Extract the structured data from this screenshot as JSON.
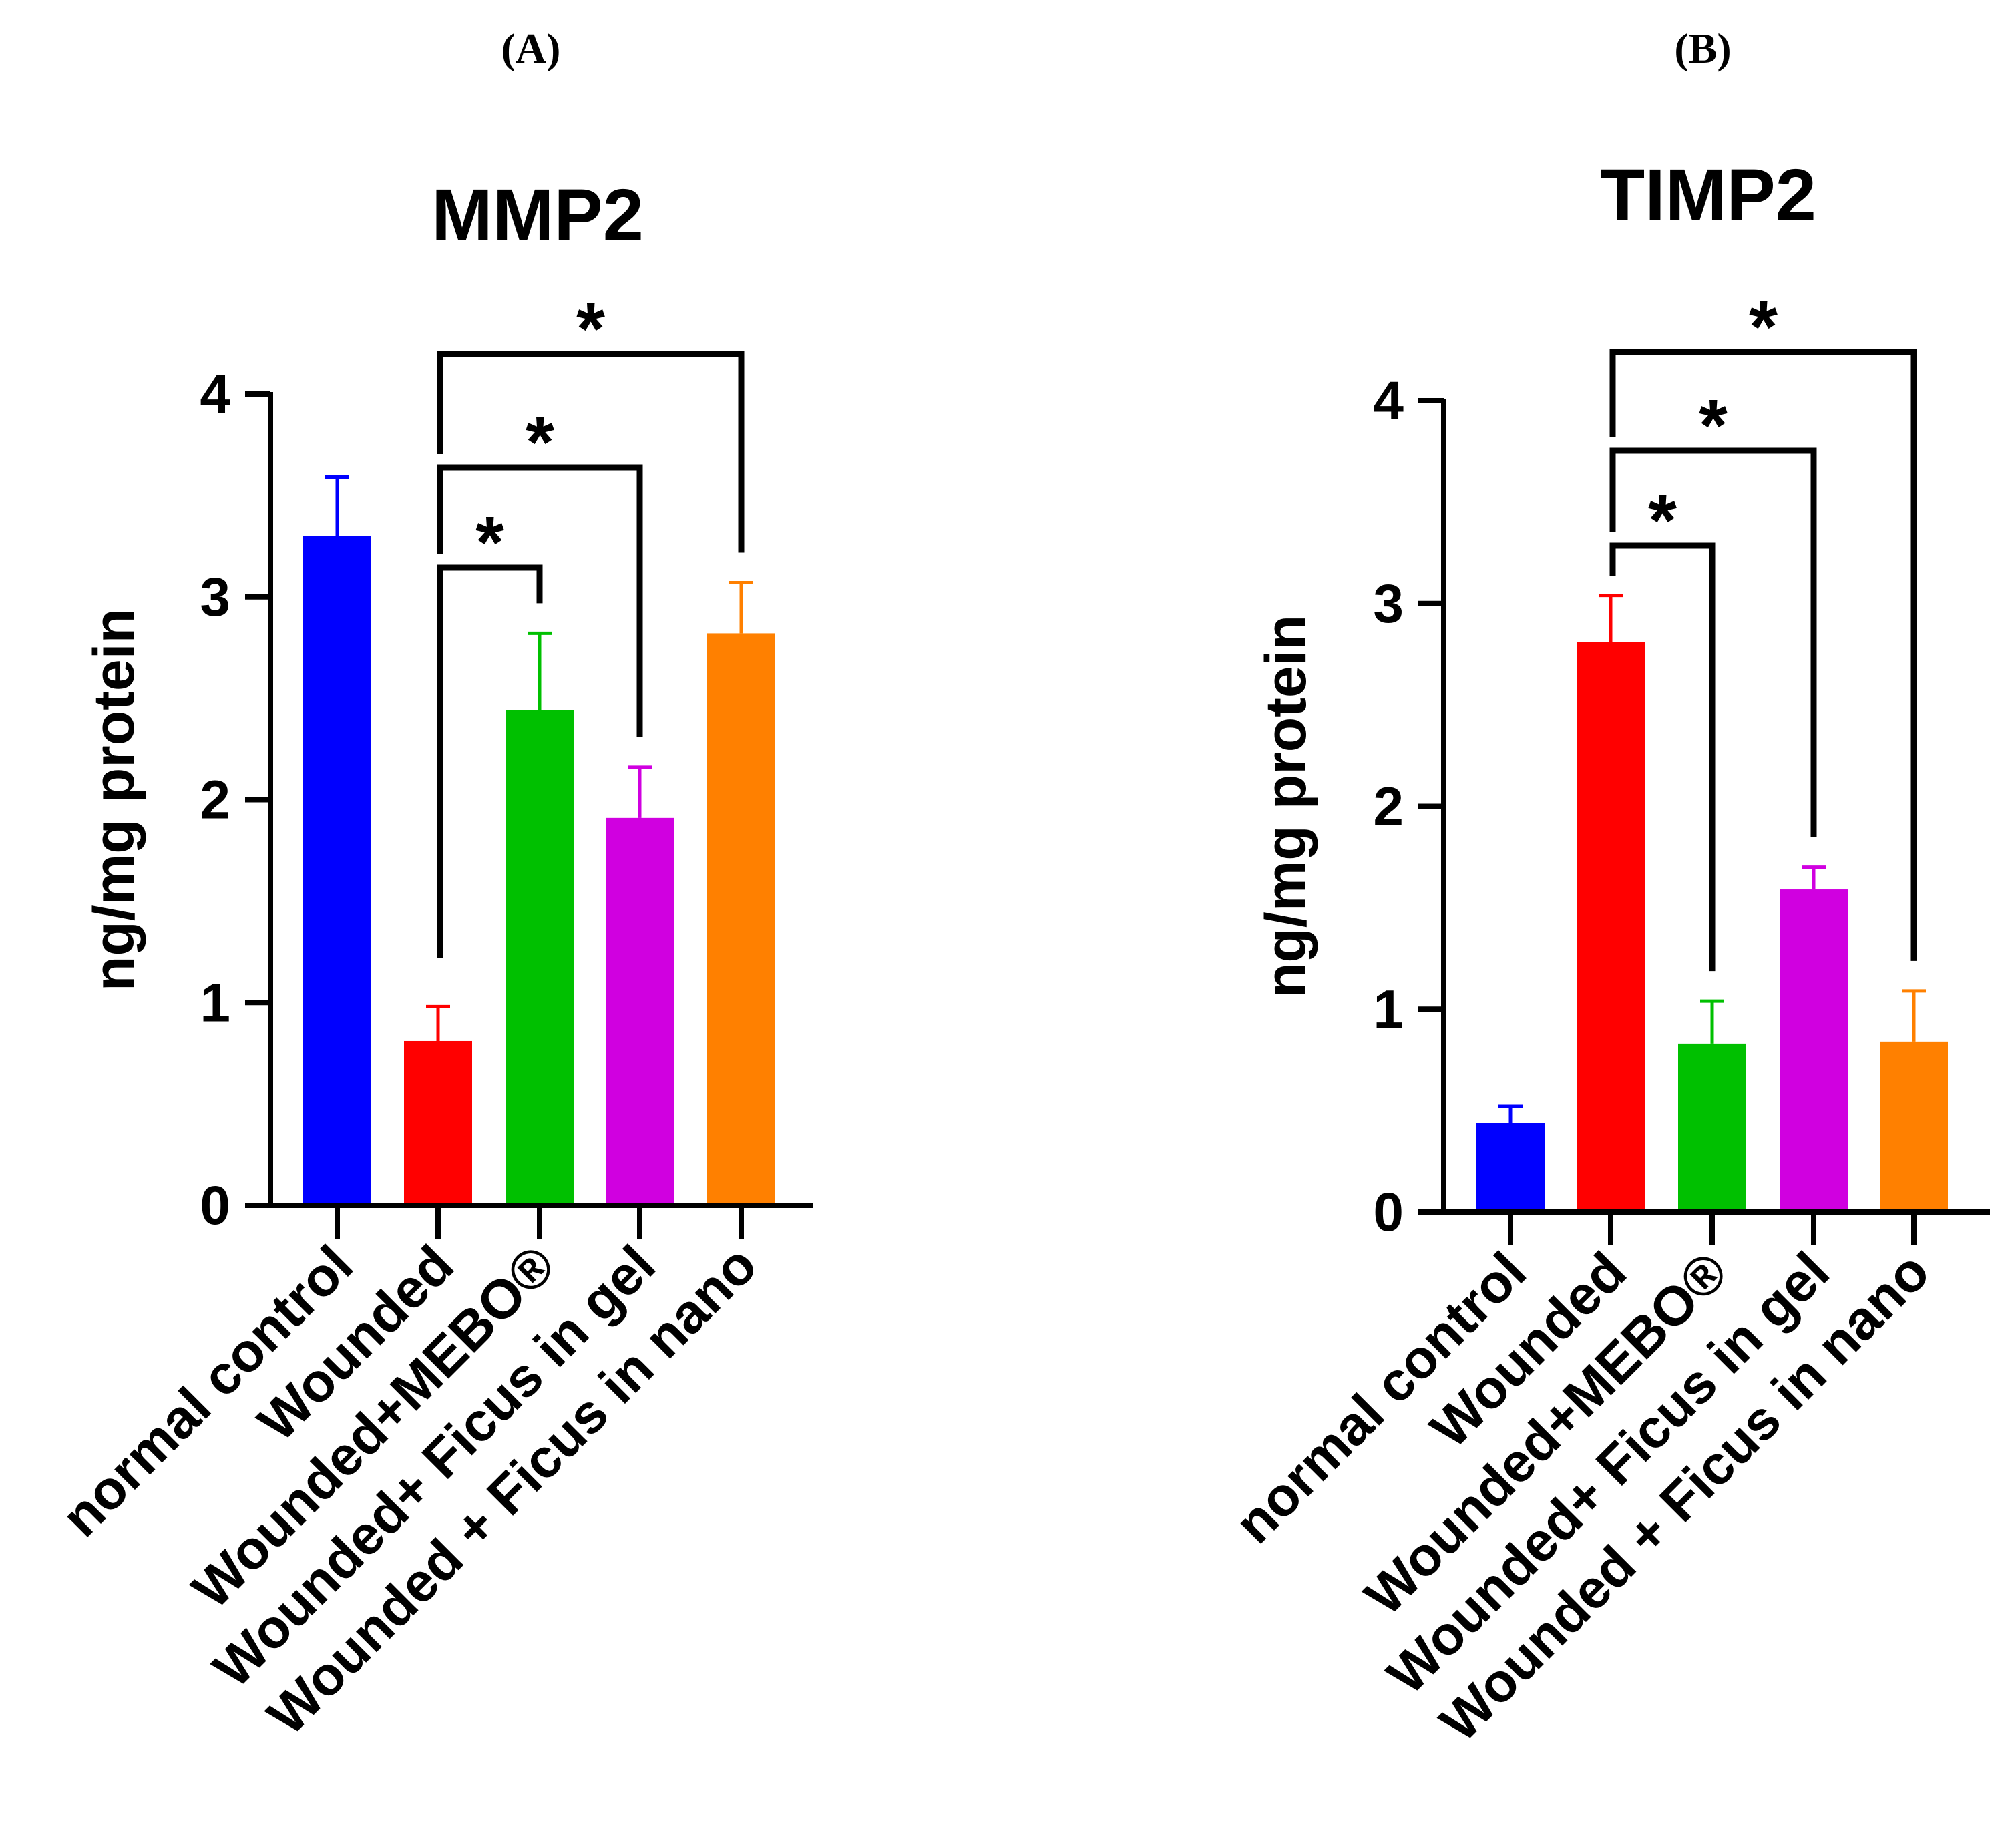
{
  "panels": [
    {
      "label": "(A)"
    },
    {
      "label": "(B)"
    }
  ],
  "chart_data": [
    {
      "type": "bar",
      "title": "MMP2",
      "xlabel": "",
      "ylabel": "ng/mg protein",
      "ylim": [
        0,
        4
      ],
      "yticks": [
        "0",
        "1",
        "2",
        "3",
        "4"
      ],
      "grid": false,
      "categories": [
        "normal control",
        "Wounded",
        "Wounded+MEBO®",
        "Wounded+ Ficus in gel",
        "Wounded + Ficus in nano"
      ],
      "values": [
        3.3,
        0.81,
        2.44,
        1.91,
        2.82
      ],
      "errors": [
        0.29,
        0.17,
        0.38,
        0.25,
        0.25
      ],
      "colors": [
        "#0000ff",
        "#ff0000",
        "#00c000",
        "#d000e0",
        "#ff8000"
      ],
      "significance": [
        {
          "from": 1,
          "to": 2,
          "label": "*"
        },
        {
          "from": 1,
          "to": 3,
          "label": "*"
        },
        {
          "from": 1,
          "to": 4,
          "label": "*"
        }
      ]
    },
    {
      "type": "bar",
      "title": "TIMP2",
      "xlabel": "",
      "ylabel": "ng/mg protein",
      "ylim": [
        0,
        4
      ],
      "yticks": [
        "0",
        "1",
        "2",
        "3",
        "4"
      ],
      "grid": false,
      "categories": [
        "normal control",
        "Wounded",
        "Wounded+MEBO®",
        "Wounded+ Ficus in gel",
        "Wounded + Ficus in nano"
      ],
      "values": [
        0.44,
        2.81,
        0.83,
        1.59,
        0.84
      ],
      "errors": [
        0.08,
        0.23,
        0.21,
        0.11,
        0.25
      ],
      "colors": [
        "#0000ff",
        "#ff0000",
        "#00c000",
        "#d000e0",
        "#ff8000"
      ],
      "significance": [
        {
          "from": 1,
          "to": 2,
          "label": "*"
        },
        {
          "from": 1,
          "to": 3,
          "label": "*"
        },
        {
          "from": 1,
          "to": 4,
          "label": "*"
        }
      ]
    }
  ]
}
